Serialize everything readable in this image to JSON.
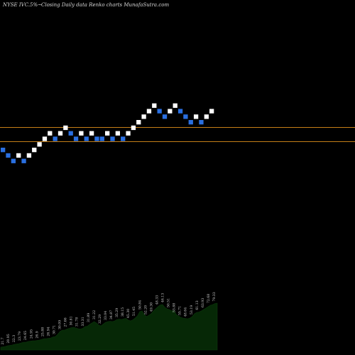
{
  "header": {
    "ticker": "NYSE IVC.5%~",
    "subtitle": "Closing Daily data  Renko  charts MunafaSutra.com"
  },
  "chart_data": {
    "type": "renko",
    "bricks": [
      {
        "level": 0,
        "dir": "down"
      },
      {
        "level": -1,
        "dir": "down"
      },
      {
        "level": -2,
        "dir": "down"
      },
      {
        "level": -1,
        "dir": "up"
      },
      {
        "level": -2,
        "dir": "down"
      },
      {
        "level": -1,
        "dir": "up"
      },
      {
        "level": 0,
        "dir": "up"
      },
      {
        "level": 1,
        "dir": "up"
      },
      {
        "level": 2,
        "dir": "up"
      },
      {
        "level": 3,
        "dir": "up"
      },
      {
        "level": 2,
        "dir": "down"
      },
      {
        "level": 3,
        "dir": "up"
      },
      {
        "level": 4,
        "dir": "up"
      },
      {
        "level": 3,
        "dir": "down"
      },
      {
        "level": 2,
        "dir": "down"
      },
      {
        "level": 3,
        "dir": "up"
      },
      {
        "level": 2,
        "dir": "down"
      },
      {
        "level": 3,
        "dir": "up"
      },
      {
        "level": 2,
        "dir": "down"
      },
      {
        "level": 2,
        "dir": "down"
      },
      {
        "level": 3,
        "dir": "up"
      },
      {
        "level": 2,
        "dir": "down"
      },
      {
        "level": 3,
        "dir": "up"
      },
      {
        "level": 2,
        "dir": "down"
      },
      {
        "level": 3,
        "dir": "up"
      },
      {
        "level": 4,
        "dir": "up"
      },
      {
        "level": 5,
        "dir": "up"
      },
      {
        "level": 6,
        "dir": "up"
      },
      {
        "level": 7,
        "dir": "up"
      },
      {
        "level": 8,
        "dir": "up"
      },
      {
        "level": 7,
        "dir": "down"
      },
      {
        "level": 6,
        "dir": "down"
      },
      {
        "level": 7,
        "dir": "up"
      },
      {
        "level": 8,
        "dir": "up"
      },
      {
        "level": 7,
        "dir": "down"
      },
      {
        "level": 6,
        "dir": "down"
      },
      {
        "level": 5,
        "dir": "down"
      },
      {
        "level": 6,
        "dir": "up"
      },
      {
        "level": 5,
        "dir": "down"
      },
      {
        "level": 6,
        "dir": "up"
      },
      {
        "level": 7,
        "dir": "up"
      }
    ],
    "reference_lines": 2,
    "volume_labels": [
      "21.7",
      "20.95",
      "22.3",
      "23.79",
      "24.65",
      "24.95",
      "26.9",
      "25.88",
      "26.94",
      "30.71",
      "30.09",
      "27.66",
      "30.81",
      "31.78",
      "33.31",
      "31.89",
      "31.22",
      "32.29",
      "33.04",
      "34.87",
      "35.29",
      "38.15",
      "45.30",
      "51.45",
      "50.84",
      "52.20",
      "49.30",
      "48.33",
      "46.13",
      "50.51",
      "53.88",
      "55.71",
      "48.64",
      "53.19",
      "61.13",
      "63.93",
      "72.68",
      "79.33"
    ],
    "volume_area": [
      4,
      4.5,
      5,
      6,
      6.5,
      7,
      8,
      8.5,
      9,
      10,
      11,
      11,
      12,
      12.5,
      13,
      13,
      13.5,
      14,
      15,
      16,
      16,
      16.5,
      17,
      18.5,
      19,
      22,
      26,
      28,
      28,
      29.5,
      30.5,
      31.5,
      32,
      31,
      30,
      29.5,
      30.5,
      33,
      33.5,
      36,
      38,
      40,
      38,
      35,
      34,
      36.5,
      39,
      40,
      40.5,
      40,
      41,
      43,
      43.5,
      43,
      44,
      44.5,
      42,
      41,
      42.5,
      45,
      48,
      54,
      55,
      50,
      47,
      49,
      51,
      55,
      58,
      61,
      63.5,
      64,
      60,
      58,
      57,
      55,
      56,
      50,
      48,
      46,
      45,
      44.5,
      44,
      45,
      47,
      51,
      53,
      53.5,
      55,
      57,
      59,
      61,
      63,
      64,
      65.5,
      66
    ]
  }
}
